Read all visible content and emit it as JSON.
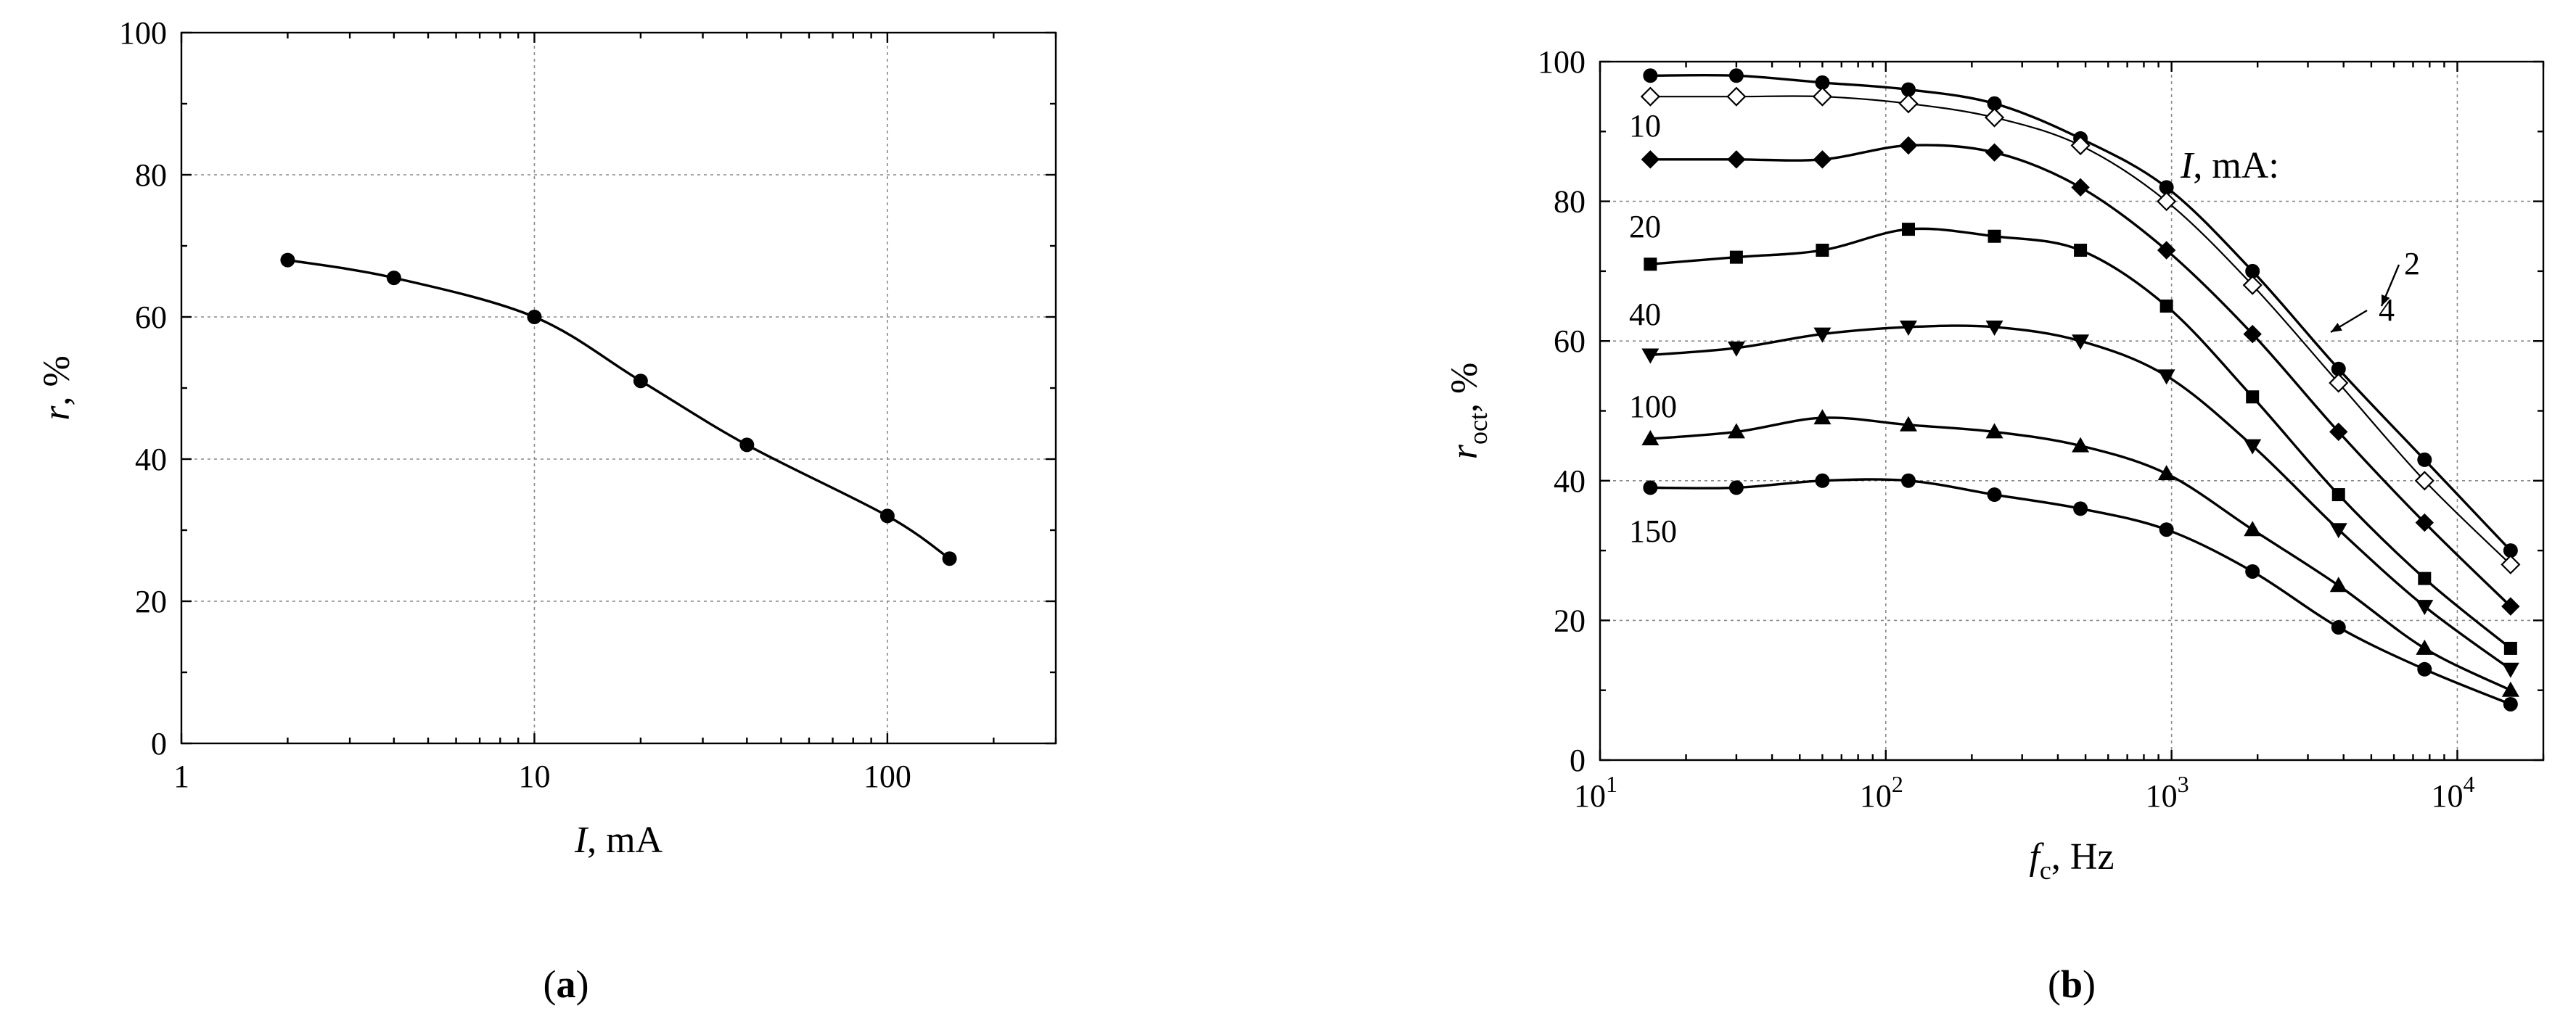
{
  "chart_data": [
    {
      "panel_label": "a",
      "type": "line",
      "xscale": "log",
      "xlim": [
        1,
        300
      ],
      "ylim": [
        0,
        100
      ],
      "xticks": [
        {
          "value": 1,
          "label": "1"
        },
        {
          "value": 10,
          "label": "10"
        },
        {
          "value": 100,
          "label": "100"
        }
      ],
      "yticks": [
        0,
        20,
        40,
        60,
        80,
        100
      ],
      "xlabel_sym": "I",
      "xlabel_rest": ", mA",
      "ylabel_sym": "r",
      "ylabel_rest": ", %",
      "grid": true,
      "series": [
        {
          "marker": "circle",
          "points": [
            [
              2,
              68
            ],
            [
              4,
              65.5
            ],
            [
              10,
              60
            ],
            [
              20,
              51
            ],
            [
              40,
              42
            ],
            [
              100,
              32
            ],
            [
              150,
              26
            ]
          ]
        }
      ]
    },
    {
      "panel_label": "b",
      "type": "line",
      "xscale": "log",
      "xlim": [
        10,
        20000
      ],
      "ylim": [
        0,
        100
      ],
      "xticks": [
        {
          "value": 10,
          "base": "10",
          "exp": "1"
        },
        {
          "value": 100,
          "base": "10",
          "exp": "2"
        },
        {
          "value": 1000,
          "base": "10",
          "exp": "3"
        },
        {
          "value": 10000,
          "base": "10",
          "exp": "4"
        }
      ],
      "yticks": [
        0,
        20,
        40,
        60,
        80,
        100
      ],
      "xlabel_sym": "f",
      "xlabel_sub": "c",
      "xlabel_rest": ", Hz",
      "ylabel_sym": "r",
      "ylabel_sub": "oct",
      "ylabel_rest": ", %",
      "legend_title_sym": "I",
      "legend_title_rest": ", mA:",
      "grid": true,
      "series": [
        {
          "label": "2",
          "marker": "circle",
          "points": [
            [
              15,
              98
            ],
            [
              30,
              98
            ],
            [
              60,
              97
            ],
            [
              120,
              96
            ],
            [
              240,
              94
            ],
            [
              480,
              89
            ],
            [
              960,
              82
            ],
            [
              1920,
              70
            ],
            [
              3840,
              56
            ],
            [
              7680,
              43
            ],
            [
              15360,
              30
            ]
          ]
        },
        {
          "label": "4",
          "marker": "diamond-open",
          "points": [
            [
              15,
              95
            ],
            [
              30,
              95
            ],
            [
              60,
              95
            ],
            [
              120,
              94
            ],
            [
              240,
              92
            ],
            [
              480,
              88
            ],
            [
              960,
              80
            ],
            [
              1920,
              68
            ],
            [
              3840,
              54
            ],
            [
              7680,
              40
            ],
            [
              15360,
              28
            ]
          ]
        },
        {
          "label": "10",
          "marker": "diamond",
          "points": [
            [
              15,
              86
            ],
            [
              30,
              86
            ],
            [
              60,
              86
            ],
            [
              120,
              88
            ],
            [
              240,
              87
            ],
            [
              480,
              82
            ],
            [
              960,
              73
            ],
            [
              1920,
              61
            ],
            [
              3840,
              47
            ],
            [
              7680,
              34
            ],
            [
              15360,
              22
            ]
          ]
        },
        {
          "label": "20",
          "marker": "square",
          "points": [
            [
              15,
              71
            ],
            [
              30,
              72
            ],
            [
              60,
              73
            ],
            [
              120,
              76
            ],
            [
              240,
              75
            ],
            [
              480,
              73
            ],
            [
              960,
              65
            ],
            [
              1920,
              52
            ],
            [
              3840,
              38
            ],
            [
              7680,
              26
            ],
            [
              15360,
              16
            ]
          ]
        },
        {
          "label": "40",
          "marker": "triangle-down",
          "points": [
            [
              15,
              58
            ],
            [
              30,
              59
            ],
            [
              60,
              61
            ],
            [
              120,
              62
            ],
            [
              240,
              62
            ],
            [
              480,
              60
            ],
            [
              960,
              55
            ],
            [
              1920,
              45
            ],
            [
              3840,
              33
            ],
            [
              7680,
              22
            ],
            [
              15360,
              13
            ]
          ]
        },
        {
          "label": "100",
          "marker": "triangle-up",
          "points": [
            [
              15,
              46
            ],
            [
              30,
              47
            ],
            [
              60,
              49
            ],
            [
              120,
              48
            ],
            [
              240,
              47
            ],
            [
              480,
              45
            ],
            [
              960,
              41
            ],
            [
              1920,
              33
            ],
            [
              3840,
              25
            ],
            [
              7680,
              16
            ],
            [
              15360,
              10
            ]
          ]
        },
        {
          "label": "150",
          "marker": "circle",
          "points": [
            [
              15,
              39
            ],
            [
              30,
              39
            ],
            [
              60,
              40
            ],
            [
              120,
              40
            ],
            [
              240,
              38
            ],
            [
              480,
              36
            ],
            [
              960,
              33
            ],
            [
              1920,
              27
            ],
            [
              3840,
              19
            ],
            [
              7680,
              13
            ],
            [
              15360,
              8
            ]
          ]
        }
      ]
    }
  ]
}
